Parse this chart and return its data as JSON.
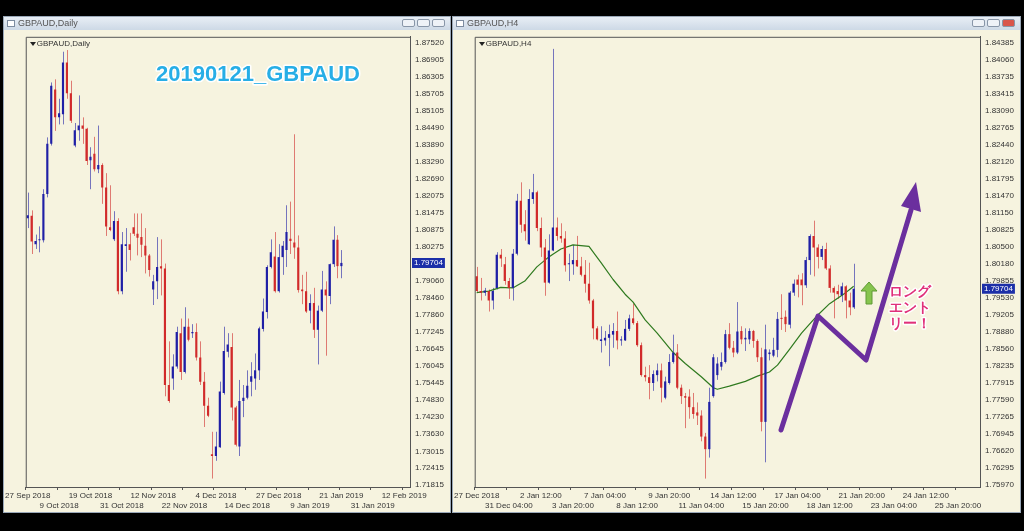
{
  "chart_data": [
    {
      "type": "candlestick",
      "title": "GBPAUD,Daily",
      "subtitle": "GBPAUD,Daily",
      "categories": [
        "27 Sep 2018",
        null,
        null,
        null,
        null,
        null,
        null,
        null,
        "9 Oct 2018",
        null,
        null,
        null,
        null,
        null,
        null,
        null,
        "19 Oct 2018",
        null,
        null,
        null,
        null,
        null,
        null,
        null,
        "31 Oct 2018",
        null,
        null,
        null,
        null,
        null,
        null,
        null,
        "12 Nov 2018",
        null,
        null,
        null,
        null,
        null,
        null,
        null,
        "22 Nov 2018",
        null,
        null,
        null,
        null,
        null,
        null,
        null,
        "4 Dec 2018",
        null,
        null,
        null,
        null,
        null,
        null,
        null,
        "14 Dec 2018",
        null,
        null,
        null,
        null,
        null,
        null,
        null,
        "27 Dec 2018",
        null,
        null,
        null,
        null,
        null,
        null,
        null,
        "9 Jan 2019",
        null,
        null,
        null,
        null,
        null,
        null,
        null,
        "21 Jan 2019",
        null,
        null,
        null,
        null,
        null,
        null,
        null,
        "31 Jan 2019",
        null,
        null,
        null,
        null,
        null,
        null,
        null,
        "12 Feb 2019",
        null
      ],
      "ohlc": [
        [
          1.8129,
          1.822,
          1.8094,
          1.814
        ],
        [
          1.8138,
          1.8157,
          1.8002,
          1.8046
        ],
        [
          1.8037,
          1.8071,
          1.802,
          1.8048
        ],
        [
          1.8051,
          1.81,
          1.8008,
          1.8053
        ],
        [
          1.8051,
          1.8232,
          1.8043,
          1.8215
        ],
        [
          1.8215,
          1.8416,
          1.8203,
          1.8393
        ],
        [
          1.8393,
          1.8611,
          1.8387,
          1.8599
        ],
        [
          1.8586,
          1.8622,
          1.8439,
          1.8487
        ],
        [
          1.8487,
          1.8553,
          1.8462,
          1.8502
        ],
        [
          1.8498,
          1.872,
          1.8462,
          1.8682
        ],
        [
          1.8682,
          1.8726,
          1.8553,
          1.8573
        ],
        [
          1.8573,
          1.8617,
          1.8467,
          1.8475
        ],
        [
          1.8387,
          1.8467,
          1.8381,
          1.8441
        ],
        [
          1.8441,
          1.8565,
          1.8404,
          1.8458
        ],
        [
          1.8458,
          1.8487,
          1.8393,
          1.8447
        ],
        [
          1.8447,
          1.845,
          1.8318,
          1.8332
        ],
        [
          1.8335,
          1.8381,
          1.8232,
          1.8347
        ],
        [
          1.8358,
          1.8418,
          1.8295,
          1.8303
        ],
        [
          1.8303,
          1.8458,
          1.8289,
          1.8318
        ],
        [
          1.8318,
          1.8324,
          1.818,
          1.8238
        ],
        [
          1.8238,
          1.8289,
          1.8066,
          1.81
        ],
        [
          1.8097,
          1.8246,
          1.8083,
          1.8087
        ],
        [
          1.8054,
          1.8154,
          1.8048,
          1.8119
        ],
        [
          1.8119,
          1.8129,
          1.7859,
          1.787
        ],
        [
          1.787,
          1.808,
          1.7859,
          1.8037
        ],
        [
          1.803,
          1.8094,
          1.7939,
          1.8037
        ],
        [
          1.8037,
          1.8077,
          1.7979,
          1.8016
        ],
        [
          1.8097,
          1.8146,
          1.8066,
          1.8074
        ],
        [
          1.8074,
          1.8146,
          1.7997,
          1.806
        ],
        [
          1.8062,
          1.8146,
          1.7991,
          1.8035
        ],
        [
          1.8031,
          1.8094,
          1.7933,
          1.7997
        ],
        [
          1.7997,
          1.8002,
          1.7922,
          1.7945
        ],
        [
          1.7876,
          1.7928,
          1.7821,
          1.7905
        ],
        [
          1.7905,
          1.8062,
          1.7842,
          1.7956
        ],
        [
          1.7959,
          1.8054,
          1.7855,
          1.7951
        ],
        [
          1.7951,
          1.7968,
          1.7497,
          1.7537
        ],
        [
          1.7537,
          1.7692,
          1.7474,
          1.748
        ],
        [
          1.756,
          1.7646,
          1.752,
          1.7603
        ],
        [
          1.7603,
          1.7744,
          1.7595,
          1.7725
        ],
        [
          1.7721,
          1.7773,
          1.7555,
          1.7583
        ],
        [
          1.7583,
          1.7813,
          1.7578,
          1.7744
        ],
        [
          1.7744,
          1.7773,
          1.7692,
          1.7698
        ],
        [
          1.7721,
          1.7753,
          1.7704,
          1.7725
        ],
        [
          1.7725,
          1.7756,
          1.7624,
          1.7635
        ],
        [
          1.7635,
          1.7692,
          1.7537,
          1.7549
        ],
        [
          1.7549,
          1.7583,
          1.7388,
          1.7463
        ],
        [
          1.7463,
          1.7492,
          1.7423,
          1.7428
        ],
        [
          1.7291,
          1.7371,
          1.7205,
          1.7285
        ],
        [
          1.7285,
          1.7371,
          1.7268,
          1.7319
        ],
        [
          1.7316,
          1.7549,
          1.7314,
          1.7514
        ],
        [
          1.7509,
          1.7744,
          1.7503,
          1.7658
        ],
        [
          1.7655,
          1.7721,
          1.7635,
          1.7681
        ],
        [
          1.7672,
          1.7721,
          1.7411,
          1.7457
        ],
        [
          1.7457,
          1.7463,
          1.7319,
          1.7325
        ],
        [
          1.7319,
          1.7555,
          1.7285,
          1.748
        ],
        [
          1.748,
          1.7537,
          1.7423,
          1.7492
        ],
        [
          1.7492,
          1.7589,
          1.7486,
          1.7534
        ],
        [
          1.7549,
          1.7618,
          1.7497,
          1.7568
        ],
        [
          1.756,
          1.7649,
          1.752,
          1.7589
        ],
        [
          1.7589,
          1.7744,
          1.7555,
          1.7738
        ],
        [
          1.7736,
          1.7844,
          1.7727,
          1.7798
        ],
        [
          1.7796,
          1.7962,
          1.7773,
          1.7956
        ],
        [
          1.7956,
          1.8054,
          1.7951,
          1.8008
        ],
        [
          1.7993,
          1.808,
          1.7865,
          1.787
        ],
        [
          1.787,
          1.8037,
          1.7865,
          1.7991
        ],
        [
          1.7991,
          1.8048,
          1.7928,
          1.8031
        ],
        [
          1.8016,
          1.8175,
          1.7956,
          1.808
        ],
        [
          1.8056,
          1.8188,
          1.8002,
          1.8048
        ],
        [
          1.8043,
          1.8427,
          1.7985,
          1.8025
        ],
        [
          1.8025,
          1.8068,
          1.7865,
          1.7874
        ],
        [
          1.7876,
          1.7928,
          1.7824,
          1.787
        ],
        [
          1.787,
          1.7939,
          1.7793,
          1.7798
        ],
        [
          1.7801,
          1.7859,
          1.7756,
          1.7828
        ],
        [
          1.7828,
          1.7882,
          1.7704,
          1.7733
        ],
        [
          1.7733,
          1.7819,
          1.761,
          1.7801
        ],
        [
          1.7801,
          1.7942,
          1.7796,
          1.7876
        ],
        [
          1.7876,
          1.7905,
          1.7641,
          1.7855
        ],
        [
          1.7853,
          1.7968,
          1.7824,
          1.7966
        ],
        [
          1.7966,
          1.81,
          1.7956,
          1.8053
        ],
        [
          1.8053,
          1.8069,
          1.7916,
          1.7959
        ],
        [
          1.7959,
          1.8016,
          1.7916,
          1.79704
        ],
        null,
        null,
        null,
        null,
        null,
        null,
        null,
        null,
        null,
        null,
        null,
        null,
        null,
        null,
        null,
        null,
        null
      ],
      "colors": [
        "#1f1fa6",
        "#d12a2a",
        "#1f1fa6",
        "#1f1fa6",
        "#1f1fa6",
        "#1f1fa6",
        "#1f1fa6",
        "#d12a2a",
        "#1f1fa6",
        "#1f1fa6",
        "#d12a2a",
        "#d12a2a",
        "#1f1fa6",
        "#1f1fa6",
        "#d12a2a",
        "#d12a2a",
        "#1f1fa6",
        "#d12a2a",
        "#1f1fa6",
        "#d12a2a",
        "#d12a2a",
        "#d12a2a",
        "#1f1fa6",
        "#d12a2a",
        "#1f1fa6",
        "#1f1fa6",
        "#d12a2a",
        "#d12a2a",
        "#d12a2a",
        "#d12a2a",
        "#d12a2a",
        "#d12a2a",
        "#1f1fa6",
        "#1f1fa6",
        "#d12a2a",
        "#d12a2a",
        "#d12a2a",
        "#1f1fa6",
        "#1f1fa6",
        "#d12a2a",
        "#1f1fa6",
        "#d12a2a",
        "#1f1fa6",
        "#d12a2a",
        "#d12a2a",
        "#d12a2a",
        "#d12a2a",
        "#d12a2a",
        "#1f1fa6",
        "#1f1fa6",
        "#1f1fa6",
        "#1f1fa6",
        "#d12a2a",
        "#d12a2a",
        "#1f1fa6",
        "#1f1fa6",
        "#1f1fa6",
        "#1f1fa6",
        "#1f1fa6",
        "#1f1fa6",
        "#1f1fa6",
        "#1f1fa6",
        "#1f1fa6",
        "#d12a2a",
        "#1f1fa6",
        "#1f1fa6",
        "#1f1fa6",
        "#d12a2a",
        "#d12a2a",
        "#d12a2a",
        "#d12a2a",
        "#d12a2a",
        "#1f1fa6",
        "#d12a2a",
        "#1f1fa6",
        "#1f1fa6",
        "#d12a2a",
        "#1f1fa6",
        "#1f1fa6",
        "#d12a2a",
        "#1f1fa6",
        null,
        null,
        null,
        null,
        null,
        null,
        null,
        null,
        null,
        null,
        null,
        null,
        null,
        null,
        null,
        null,
        null
      ],
      "ylim": [
        1.7175,
        1.8773
      ],
      "yticks": [
        {
          "value": 1.8752,
          "label": "1.87520"
        },
        1.86905,
        1.86305,
        1.85705,
        1.85105,
        {
          "value": 1.8449,
          "label": "1.84490"
        },
        {
          "value": 1.8389,
          "label": "1.83890"
        },
        {
          "value": 1.8329,
          "label": "1.83290"
        },
        {
          "value": 1.8269,
          "label": "1.82690"
        },
        1.82075,
        1.81475,
        1.80875,
        1.80275,
        {
          "value": 1.7906,
          "label": "1.79060"
        },
        {
          "value": 1.7846,
          "label": "1.78460"
        },
        {
          "value": 1.7786,
          "label": "1.77860"
        },
        1.77245,
        1.76645,
        1.76045,
        1.75445,
        {
          "value": 1.7483,
          "label": "1.74830"
        },
        {
          "value": 1.7423,
          "label": "1.74230"
        },
        {
          "value": 1.7363,
          "label": "1.73630"
        },
        1.73015,
        1.72415,
        1.71815
      ],
      "annotations": [
        "20190121_GBPAUD",
        {
          "text": "1.79704",
          "y": 1.79704
        }
      ]
    },
    {
      "type": "candlestick",
      "title": "GBPAUD,H4",
      "subtitle": "GBPAUD,H4",
      "categories": [
        "27 Dec 2018",
        null,
        null,
        null,
        null,
        null,
        null,
        null,
        "31 Dec 04:00",
        null,
        null,
        null,
        null,
        null,
        null,
        null,
        "2 Jan 12:00",
        null,
        null,
        null,
        null,
        null,
        null,
        null,
        "3 Jan 20:00",
        null,
        null,
        null,
        null,
        null,
        null,
        null,
        "7 Jan 04:00",
        null,
        null,
        null,
        null,
        null,
        null,
        null,
        "8 Jan 12:00",
        null,
        null,
        null,
        null,
        null,
        null,
        null,
        "9 Jan 20:00",
        null,
        null,
        null,
        null,
        null,
        null,
        null,
        "11 Jan 04:00",
        null,
        null,
        null,
        null,
        null,
        null,
        null,
        "14 Jan 12:00",
        null,
        null,
        null,
        null,
        null,
        null,
        null,
        "15 Jan 20:00",
        null,
        null,
        null,
        null,
        null,
        null,
        null,
        "17 Jan 04:00",
        null,
        null,
        null,
        null,
        null,
        null,
        null,
        "18 Jan 12:00",
        null,
        null,
        null,
        null,
        null,
        null,
        null,
        "21 Jan 20:00",
        null,
        null,
        null,
        null,
        null,
        null,
        null,
        "23 Jan 04:00",
        null,
        null,
        null,
        null,
        null,
        null,
        null,
        "24 Jan 12:00",
        null,
        null,
        null,
        null,
        null,
        null,
        null,
        "25 Jan 20:00",
        null,
        null,
        null,
        null,
        null
      ],
      "ohlc": [
        [
          1.7994,
          1.8012,
          1.7963,
          1.7966
        ],
        [
          1.7966,
          1.7991,
          1.7948,
          1.7963
        ],
        [
          1.7963,
          1.7972,
          1.7957,
          1.7967
        ],
        [
          1.7966,
          1.7969,
          1.7927,
          1.7948
        ],
        [
          1.7948,
          1.7972,
          1.7931,
          1.7966
        ],
        [
          1.7972,
          1.804,
          1.7969,
          1.8035
        ],
        [
          1.8035,
          1.8046,
          1.8012,
          1.8028
        ],
        [
          1.8017,
          1.8031,
          1.7978,
          1.7985
        ],
        [
          1.7985,
          1.7991,
          1.7951,
          1.7972
        ],
        [
          1.7972,
          1.8046,
          1.7948,
          1.8037
        ],
        [
          1.8037,
          1.8151,
          1.8034,
          1.8138
        ],
        [
          1.8138,
          1.8173,
          1.8077,
          1.8092
        ],
        [
          1.8093,
          1.812,
          1.8062,
          1.808
        ],
        [
          1.8055,
          1.816,
          1.8054,
          1.8141
        ],
        [
          1.8141,
          1.8189,
          1.8132,
          1.8154
        ],
        [
          1.8154,
          1.8157,
          1.808,
          1.8086
        ],
        [
          1.8086,
          1.8106,
          1.8031,
          1.8049
        ],
        [
          1.8049,
          1.8065,
          1.7957,
          1.7982
        ],
        [
          1.7982,
          1.8074,
          1.798,
          1.8043
        ],
        [
          1.8043,
          1.8427,
          1.8042,
          1.8087
        ],
        [
          1.8087,
          1.8106,
          1.8062,
          1.8071
        ],
        [
          1.8071,
          1.8095,
          1.8058,
          1.8066
        ],
        [
          1.8066,
          1.808,
          1.8003,
          1.8015
        ],
        [
          1.8017,
          1.8037,
          1.7985,
          1.8018
        ],
        [
          1.8017,
          1.8054,
          1.7997,
          1.8025
        ],
        [
          1.8025,
          1.8071,
          1.8012,
          1.8013
        ],
        [
          1.8013,
          1.8031,
          1.7994,
          1.7997
        ],
        [
          1.7997,
          1.8025,
          1.7963,
          1.798
        ],
        [
          1.798,
          1.802,
          1.7942,
          1.7948
        ],
        [
          1.7948,
          1.7951,
          1.7874,
          1.7895
        ],
        [
          1.7895,
          1.7899,
          1.7872,
          1.7874
        ],
        [
          1.7871,
          1.7899,
          1.7849,
          1.7874
        ],
        [
          1.7872,
          1.789,
          1.7862,
          1.7877
        ],
        [
          1.7877,
          1.7902,
          1.7823,
          1.7884
        ],
        [
          1.7883,
          1.7905,
          1.7858,
          1.789
        ],
        [
          1.789,
          1.7927,
          1.7855,
          1.7872
        ],
        [
          1.7872,
          1.788,
          1.7862,
          1.7874
        ],
        [
          1.7872,
          1.7911,
          1.7871,
          1.7894
        ],
        [
          1.7894,
          1.7921,
          1.789,
          1.7914
        ],
        [
          1.7914,
          1.7942,
          1.7902,
          1.7905
        ],
        [
          1.7905,
          1.7909,
          1.786,
          1.7863
        ],
        [
          1.7863,
          1.7868,
          1.7803,
          1.7806
        ],
        [
          1.7806,
          1.7822,
          1.7794,
          1.7802
        ],
        [
          1.7802,
          1.7825,
          1.776,
          1.7791
        ],
        [
          1.7791,
          1.7815,
          1.7776,
          1.7808
        ],
        [
          1.7806,
          1.7828,
          1.7794,
          1.7815
        ],
        [
          1.7815,
          1.7828,
          1.7754,
          1.7782
        ],
        [
          1.7763,
          1.7803,
          1.776,
          1.7794
        ],
        [
          1.7791,
          1.7846,
          1.7788,
          1.7831
        ],
        [
          1.7831,
          1.7883,
          1.7828,
          1.7849
        ],
        [
          1.7849,
          1.7865,
          1.7779,
          1.7782
        ],
        [
          1.7782,
          1.7788,
          1.7751,
          1.7766
        ],
        [
          1.7766,
          1.7772,
          1.7705,
          1.7763
        ],
        [
          1.7765,
          1.7779,
          1.7723,
          1.7745
        ],
        [
          1.7745,
          1.7772,
          1.7723,
          1.7732
        ],
        [
          1.7735,
          1.7754,
          1.7711,
          1.7729
        ],
        [
          1.7729,
          1.7739,
          1.768,
          1.7689
        ],
        [
          1.7689,
          1.7696,
          1.7609,
          1.7665
        ],
        [
          1.7665,
          1.7782,
          1.7649,
          1.7755
        ],
        [
          1.7766,
          1.7846,
          1.7763,
          1.784
        ],
        [
          1.7806,
          1.784,
          1.7797,
          1.7828
        ],
        [
          1.7822,
          1.7849,
          1.7815,
          1.7831
        ],
        [
          1.7831,
          1.7892,
          1.7828,
          1.7884
        ],
        [
          1.7884,
          1.7905,
          1.7855,
          1.7858
        ],
        [
          1.7858,
          1.7871,
          1.784,
          1.7849
        ],
        [
          1.7849,
          1.7945,
          1.7846,
          1.7889
        ],
        [
          1.789,
          1.7899,
          1.7865,
          1.7874
        ],
        [
          1.7874,
          1.7895,
          1.7852,
          1.7877
        ],
        [
          1.7874,
          1.7895,
          1.7865,
          1.789
        ],
        [
          1.789,
          1.7892,
          1.7858,
          1.7871
        ],
        [
          1.7871,
          1.7874,
          1.7831,
          1.784
        ],
        [
          1.784,
          1.7858,
          1.7699,
          1.7717
        ],
        [
          1.7717,
          1.7902,
          1.764,
          1.7855
        ],
        [
          1.7846,
          1.7855,
          1.7834,
          1.7849
        ],
        [
          1.7843,
          1.7877,
          1.784,
          1.7854
        ],
        [
          1.7854,
          1.7926,
          1.784,
          1.7913
        ],
        [
          1.7915,
          1.796,
          1.7892,
          1.7913
        ],
        [
          1.7917,
          1.7929,
          1.7888,
          1.7903
        ],
        [
          1.7902,
          1.7966,
          1.7895,
          1.7963
        ],
        [
          1.7963,
          1.7988,
          1.7957,
          1.798
        ],
        [
          1.7988,
          1.7997,
          1.7954,
          1.7978
        ],
        [
          1.7988,
          1.8,
          1.7939,
          1.7977
        ],
        [
          1.7977,
          1.8031,
          1.7972,
          1.8025
        ],
        [
          1.8025,
          1.8074,
          1.7997,
          1.8071
        ],
        [
          1.8071,
          1.81,
          1.7994,
          1.8049
        ],
        [
          1.8049,
          1.8055,
          1.8009,
          1.8031
        ],
        [
          1.8031,
          1.8052,
          1.8025,
          1.8046
        ],
        [
          1.8046,
          1.8058,
          1.8006,
          1.8009
        ],
        [
          1.8009,
          1.8015,
          1.7963,
          1.7972
        ],
        [
          1.7972,
          1.7975,
          1.7914,
          1.7963
        ],
        [
          1.7966,
          1.7978,
          1.7951,
          1.796
        ],
        [
          1.7958,
          1.7982,
          1.7945,
          1.7975
        ],
        [
          1.7975,
          1.7977,
          1.7914,
          1.7948
        ],
        [
          1.7948,
          1.7963,
          1.792,
          1.7935
        ],
        [
          1.7935,
          1.8018,
          1.7932,
          1.79704
        ],
        null,
        null,
        null,
        null,
        null,
        null,
        null,
        null,
        null,
        null,
        null,
        null,
        null,
        null,
        null,
        null,
        null,
        null,
        null,
        null,
        null,
        null,
        null,
        null,
        null,
        null,
        null,
        null,
        null,
        null,
        null
      ],
      "colors": [
        "#d12a2a",
        "#d12a2a",
        "#1f1fa6",
        "#d12a2a",
        "#1f1fa6",
        "#1f1fa6",
        "#d12a2a",
        "#d12a2a",
        "#d12a2a",
        "#1f1fa6",
        "#1f1fa6",
        "#d12a2a",
        "#d12a2a",
        "#1f1fa6",
        "#1f1fa6",
        "#d12a2a",
        "#d12a2a",
        "#d12a2a",
        "#1f1fa6",
        "#1f1fa6",
        "#d12a2a",
        "#d12a2a",
        "#d12a2a",
        "#1f1fa6",
        "#1f1fa6",
        "#d12a2a",
        "#d12a2a",
        "#d12a2a",
        "#d12a2a",
        "#d12a2a",
        "#d12a2a",
        "#1f1fa6",
        "#1f1fa6",
        "#1f1fa6",
        "#1f1fa6",
        "#d12a2a",
        "#1f1fa6",
        "#1f1fa6",
        "#1f1fa6",
        "#d12a2a",
        "#d12a2a",
        "#d12a2a",
        "#d12a2a",
        "#d12a2a",
        "#1f1fa6",
        "#1f1fa6",
        "#d12a2a",
        "#1f1fa6",
        "#1f1fa6",
        "#1f1fa6",
        "#d12a2a",
        "#d12a2a",
        "#d12a2a",
        "#d12a2a",
        "#d12a2a",
        "#d12a2a",
        "#d12a2a",
        "#d12a2a",
        "#1f1fa6",
        "#1f1fa6",
        "#1f1fa6",
        "#1f1fa6",
        "#1f1fa6",
        "#d12a2a",
        "#d12a2a",
        "#1f1fa6",
        "#d12a2a",
        "#1f1fa6",
        "#1f1fa6",
        "#d12a2a",
        "#d12a2a",
        "#d12a2a",
        "#1f1fa6",
        "#1f1fa6",
        "#1f1fa6",
        "#1f1fa6",
        "#d12a2a",
        "#d12a2a",
        "#1f1fa6",
        "#1f1fa6",
        "#d12a2a",
        "#d12a2a",
        "#1f1fa6",
        "#1f1fa6",
        "#d12a2a",
        "#d12a2a",
        "#1f1fa6",
        "#d12a2a",
        "#d12a2a",
        "#d12a2a",
        "#d12a2a",
        "#1f1fa6",
        "#d12a2a",
        "#d12a2a",
        "#1f1fa6",
        null,
        null,
        null,
        null,
        null,
        null,
        null,
        null,
        null,
        null,
        null,
        null,
        null,
        null,
        null,
        null,
        null,
        null,
        null,
        null,
        null,
        null,
        null,
        null,
        null,
        null,
        null,
        null,
        null,
        null,
        null
      ],
      "series": [
        {
          "type": "line",
          "color": "#2f7a1f",
          "values": [
            1.7963,
            null,
            null,
            1.7966,
            null,
            null,
            1.7973,
            null,
            null,
            1.7972,
            null,
            null,
            1.7985,
            null,
            null,
            1.8012,
            null,
            null,
            1.8031,
            null,
            null,
            1.8046,
            null,
            null,
            1.8054,
            null,
            null,
            null,
            1.8051,
            null,
            null,
            1.802,
            null,
            null,
            1.7988,
            null,
            null,
            1.796,
            null,
            1.7945,
            null,
            null,
            1.7911,
            null,
            null,
            1.7886,
            null,
            null,
            null,
            1.7849,
            null,
            null,
            1.7828,
            null,
            null,
            null,
            1.7803,
            null,
            null,
            1.7782,
            1.7779,
            null,
            null,
            1.7785,
            null,
            null,
            null,
            1.7794,
            null,
            null,
            1.7804,
            null,
            null,
            1.7812,
            null,
            1.7825,
            null,
            null,
            1.7855,
            null,
            null,
            1.7886,
            null,
            null,
            null,
            1.792,
            null,
            null,
            1.7942,
            null,
            null,
            null,
            1.7963,
            1.7969,
            1.7975,
            null,
            null,
            null,
            null,
            null,
            null,
            null,
            null,
            null,
            null,
            null,
            null,
            null,
            null,
            null,
            null,
            null,
            null,
            null,
            null,
            null,
            null,
            null,
            null,
            null,
            null,
            null,
            null,
            null,
            null,
            null
          ]
        }
      ],
      "ylim": [
        1.7593,
        1.845
      ],
      "yticks": [
        1.84385,
        {
          "value": 1.8406,
          "label": "1.84060"
        },
        1.83735,
        1.83415,
        {
          "value": 1.8309,
          "label": "1.83090"
        },
        1.82765,
        {
          "value": 1.8244,
          "label": "1.82440"
        },
        {
          "value": 1.8212,
          "label": "1.82120"
        },
        1.81795,
        {
          "value": 1.8147,
          "label": "1.81470"
        },
        {
          "value": 1.8115,
          "label": "1.81150"
        },
        1.80825,
        {
          "value": 1.805,
          "label": "1.80500"
        },
        {
          "value": 1.8018,
          "label": "1.80180"
        },
        1.79855,
        {
          "value": 1.7953,
          "label": "1.79530"
        },
        1.79205,
        {
          "value": 1.7888,
          "label": "1.78880"
        },
        {
          "value": 1.7856,
          "label": "1.78560"
        },
        1.78235,
        1.77915,
        {
          "value": 1.7759,
          "label": "1.77590"
        },
        1.77265,
        1.76945,
        {
          "value": 1.7662,
          "label": "1.76620"
        },
        1.76295,
        {
          "value": 1.7597,
          "label": "1.75970"
        }
      ],
      "annotations": [
        {
          "text": "1.79704",
          "y": 1.79704
        },
        "ロングエントリー！"
      ]
    }
  ]
}
